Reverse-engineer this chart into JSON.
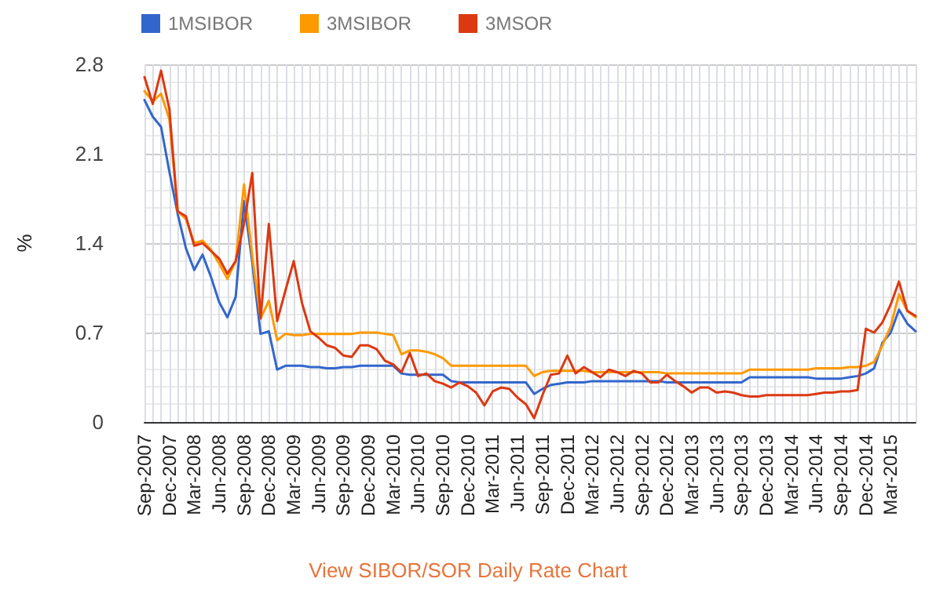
{
  "chart_data": {
    "type": "line",
    "ylabel": "%",
    "categories": [
      "Sep-2007",
      null,
      null,
      "Dec-2007",
      null,
      null,
      "Mar-2008",
      null,
      null,
      "Jun-2008",
      null,
      null,
      "Sep-2008",
      null,
      null,
      "Dec-2008",
      null,
      null,
      "Mar-2009",
      null,
      null,
      "Jun-2009",
      null,
      null,
      "Sep-2009",
      null,
      null,
      "Dec-2009",
      null,
      null,
      "Mar-2010",
      null,
      null,
      "Jun-2010",
      null,
      null,
      "Sep-2010",
      null,
      null,
      "Dec-2010",
      null,
      null,
      "Mar-2011",
      null,
      null,
      "Jun-2011",
      null,
      null,
      "Sep-2011",
      null,
      null,
      "Dec-2011",
      null,
      null,
      "Mar-2012",
      null,
      null,
      "Jun-2012",
      null,
      null,
      "Sep-2012",
      null,
      null,
      "Dec-2012",
      null,
      null,
      "Mar-2013",
      null,
      null,
      "Jun-2013",
      null,
      null,
      "Sep-2013",
      null,
      null,
      "Dec-2013",
      null,
      null,
      "Mar-2014",
      null,
      null,
      "Jun-2014",
      null,
      null,
      "Sep-2014",
      null,
      null,
      "Dec-2014",
      null,
      null,
      "Mar-2015",
      null,
      null,
      null
    ],
    "series": [
      {
        "name": "1MSIBOR",
        "color": "#3366cc",
        "values": [
          2.52,
          2.39,
          2.31,
          1.96,
          1.63,
          1.36,
          1.19,
          1.31,
          1.14,
          0.94,
          0.82,
          0.98,
          1.73,
          1.25,
          0.69,
          0.71,
          0.41,
          0.44,
          0.44,
          0.44,
          0.43,
          0.43,
          0.42,
          0.42,
          0.43,
          0.43,
          0.44,
          0.44,
          0.44,
          0.44,
          0.44,
          0.38,
          0.37,
          0.37,
          0.37,
          0.37,
          0.37,
          0.32,
          0.31,
          0.31,
          0.31,
          0.31,
          0.31,
          0.31,
          0.31,
          0.31,
          0.31,
          0.22,
          0.26,
          0.29,
          0.3,
          0.31,
          0.31,
          0.31,
          0.32,
          0.32,
          0.32,
          0.32,
          0.32,
          0.32,
          0.32,
          0.32,
          0.32,
          0.31,
          0.31,
          0.31,
          0.31,
          0.31,
          0.31,
          0.31,
          0.31,
          0.31,
          0.31,
          0.35,
          0.35,
          0.35,
          0.35,
          0.35,
          0.35,
          0.35,
          0.35,
          0.34,
          0.34,
          0.34,
          0.34,
          0.35,
          0.36,
          0.38,
          0.42,
          0.62,
          0.7,
          0.88,
          0.77,
          0.71
        ]
      },
      {
        "name": "3MSIBOR",
        "color": "#ff9900",
        "values": [
          2.59,
          2.51,
          2.57,
          2.37,
          1.65,
          1.59,
          1.4,
          1.42,
          1.35,
          1.24,
          1.12,
          1.26,
          1.86,
          1.3,
          0.81,
          0.95,
          0.64,
          0.69,
          0.68,
          0.68,
          0.69,
          0.69,
          0.69,
          0.69,
          0.69,
          0.69,
          0.7,
          0.7,
          0.7,
          0.69,
          0.68,
          0.53,
          0.56,
          0.56,
          0.55,
          0.53,
          0.5,
          0.44,
          0.44,
          0.44,
          0.44,
          0.44,
          0.44,
          0.44,
          0.44,
          0.44,
          0.44,
          0.36,
          0.39,
          0.4,
          0.4,
          0.4,
          0.4,
          0.4,
          0.39,
          0.39,
          0.39,
          0.39,
          0.39,
          0.39,
          0.39,
          0.39,
          0.39,
          0.38,
          0.38,
          0.38,
          0.38,
          0.38,
          0.38,
          0.38,
          0.38,
          0.38,
          0.38,
          0.41,
          0.41,
          0.41,
          0.41,
          0.41,
          0.41,
          0.41,
          0.41,
          0.42,
          0.42,
          0.42,
          0.42,
          0.43,
          0.43,
          0.44,
          0.47,
          0.6,
          0.75,
          1.0,
          0.87,
          0.82
        ]
      },
      {
        "name": "3MSOR",
        "color": "#dc3912",
        "values": [
          2.7,
          2.49,
          2.75,
          2.45,
          1.65,
          1.61,
          1.38,
          1.4,
          1.34,
          1.28,
          1.16,
          1.26,
          1.55,
          1.95,
          0.81,
          1.55,
          0.79,
          1.03,
          1.26,
          0.93,
          0.71,
          0.66,
          0.6,
          0.58,
          0.52,
          0.51,
          0.6,
          0.6,
          0.57,
          0.48,
          0.45,
          0.39,
          0.54,
          0.36,
          0.38,
          0.32,
          0.3,
          0.27,
          0.31,
          0.28,
          0.23,
          0.13,
          0.24,
          0.27,
          0.26,
          0.19,
          0.14,
          0.03,
          0.21,
          0.37,
          0.38,
          0.52,
          0.38,
          0.43,
          0.39,
          0.35,
          0.41,
          0.39,
          0.36,
          0.4,
          0.38,
          0.31,
          0.31,
          0.37,
          0.32,
          0.28,
          0.23,
          0.27,
          0.27,
          0.23,
          0.24,
          0.23,
          0.21,
          0.2,
          0.2,
          0.21,
          0.21,
          0.21,
          0.21,
          0.21,
          0.21,
          0.22,
          0.23,
          0.23,
          0.24,
          0.24,
          0.25,
          0.73,
          0.7,
          0.78,
          0.92,
          1.1,
          0.87,
          0.83
        ]
      }
    ],
    "ylim": [
      0,
      2.8
    ],
    "yticks": [
      0,
      0.7,
      1.4,
      2.1,
      2.8
    ],
    "grid": true,
    "legend": "top left",
    "marker": "none",
    "annotations": [
      "View SIBOR/SOR Daily Rate Chart"
    ]
  }
}
